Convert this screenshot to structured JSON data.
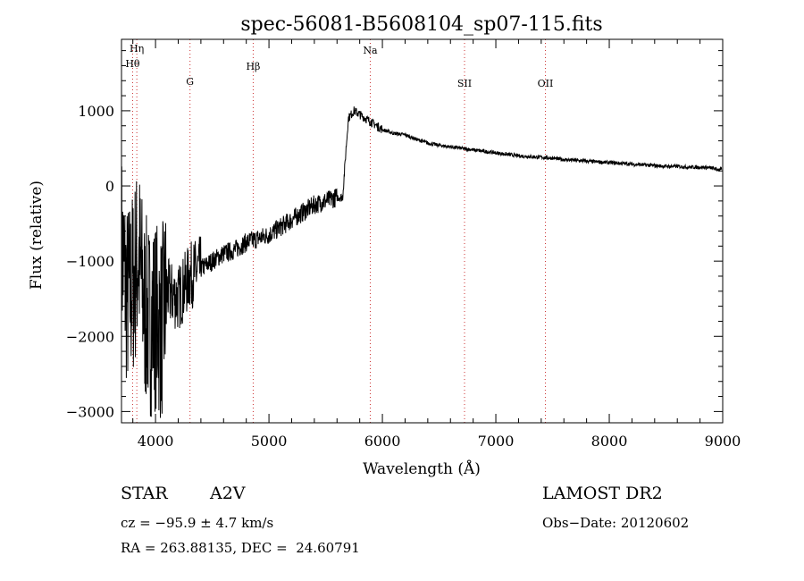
{
  "chart_data": {
    "type": "line",
    "title": "spec-56081-B5608104_sp07-115.fits",
    "xlabel": "Wavelength (Å)",
    "ylabel": "Flux (relative)",
    "xlim": [
      3700,
      9000
    ],
    "ylim": [
      -3150,
      1950
    ],
    "x_ticks": [
      4000,
      5000,
      6000,
      7000,
      8000,
      9000
    ],
    "y_ticks": [
      -3000,
      -2000,
      -1000,
      0,
      1000
    ],
    "grid": false,
    "line_color": "#000000",
    "marker_color": "#cc3333",
    "spectral_lines": [
      {
        "name": "Hη",
        "wavelength": 3835
      },
      {
        "name": "Hθ",
        "wavelength": 3798
      },
      {
        "name": "G",
        "wavelength": 4304
      },
      {
        "name": "Hβ",
        "wavelength": 4861
      },
      {
        "name": "Na",
        "wavelength": 5893
      },
      {
        "name": "SII",
        "wavelength": 6724
      },
      {
        "name": "OII",
        "wavelength": 7437
      }
    ],
    "series": [
      {
        "x": [
          3700,
          3750,
          3800,
          3850,
          3900,
          3950,
          4000,
          4050,
          4100,
          4200,
          4300,
          4400,
          4500,
          4600,
          4700,
          4800,
          4900,
          5000,
          5100,
          5200,
          5300,
          5400,
          5500,
          5600,
          5650,
          5680,
          5700,
          5750,
          5800,
          5900,
          6000,
          6100,
          6200,
          6300,
          6400,
          6500,
          6600,
          6700,
          6800,
          6900,
          7000,
          7100,
          7200,
          7300,
          7400,
          7500,
          7600,
          7700,
          7800,
          7900,
          8000,
          8100,
          8200,
          8300,
          8400,
          8500,
          8600,
          8700,
          8800,
          8900,
          8950
        ],
        "y": [
          -800,
          -1500,
          -1300,
          -900,
          -1600,
          -1800,
          -1700,
          -1900,
          -1400,
          -1500,
          -1200,
          -1100,
          -1000,
          -900,
          -850,
          -750,
          -700,
          -650,
          -550,
          -450,
          -350,
          -250,
          -200,
          -150,
          -150,
          500,
          900,
          1000,
          950,
          850,
          750,
          700,
          680,
          620,
          570,
          540,
          520,
          500,
          480,
          460,
          440,
          420,
          400,
          390,
          380,
          370,
          350,
          340,
          330,
          320,
          310,
          300,
          290,
          280,
          270,
          260,
          260,
          250,
          250,
          240,
          220
        ]
      }
    ]
  },
  "info": {
    "object_class": "STAR",
    "subclass": "A2V",
    "survey": "LAMOST DR2",
    "redshift": "cz = −95.9 ± 4.7 km/s",
    "obs_date": "Obs−Date: 20120602",
    "coords": "RA = 263.88135, DEC =  24.60791"
  }
}
